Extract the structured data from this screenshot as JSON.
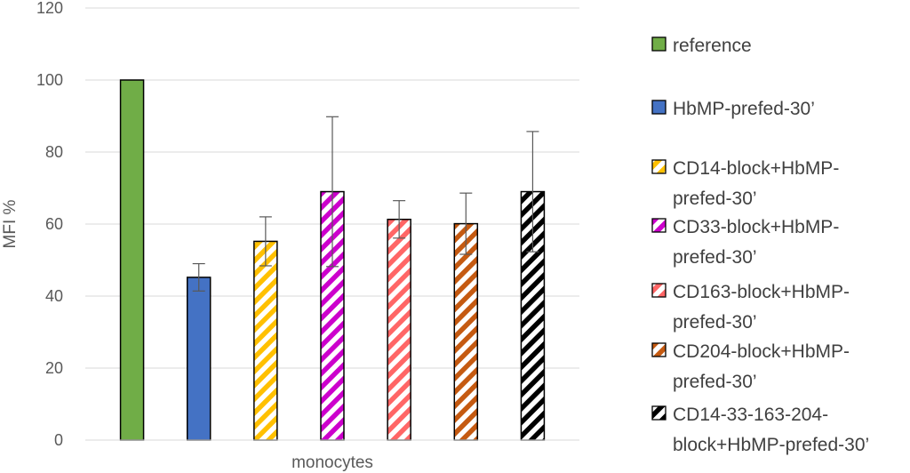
{
  "chart_data": {
    "type": "bar",
    "categories": [
      "monocytes"
    ],
    "xlabel": "monocytes",
    "ylabel": "MFI %",
    "ylim": [
      0,
      120
    ],
    "yticks": [
      0,
      20,
      40,
      60,
      80,
      100,
      120
    ],
    "grid": true,
    "legend_position": "right",
    "series": [
      {
        "name": "reference",
        "value": 100,
        "error": null,
        "color": "#70AD47",
        "pattern": "solid"
      },
      {
        "name": "HbMP-prefed-30’",
        "value": 45.2,
        "error": 3.8,
        "color": "#4472C4",
        "pattern": "solid"
      },
      {
        "name": "CD14-block+HbMP-prefed-30’",
        "value": 55.2,
        "error": 6.8,
        "color": "#FFC000",
        "pattern": "stripes"
      },
      {
        "name": "CD33-block+HbMP-prefed-30’",
        "value": 69.0,
        "error": 20.8,
        "color": "#CC00CC",
        "pattern": "stripes"
      },
      {
        "name": "CD163-block+HbMP-prefed-30’",
        "value": 61.3,
        "error": 5.2,
        "color": "#FF6666",
        "pattern": "stripes"
      },
      {
        "name": "CD204-block+HbMP-prefed-30’",
        "value": 60.1,
        "error": 8.5,
        "color": "#C55A11",
        "pattern": "stripes"
      },
      {
        "name": "CD14-33-163-204-block+HbMP-prefed-30’",
        "value": 69.0,
        "error": 16.7,
        "color": "#000000",
        "pattern": "stripes"
      }
    ],
    "legend_lines": [
      [
        "reference"
      ],
      [
        "HbMP-prefed-30’"
      ],
      [
        "CD14-block+HbMP-",
        "prefed-30’"
      ],
      [
        "CD33-block+HbMP-",
        "prefed-30’"
      ],
      [
        "CD163-block+HbMP-",
        "prefed-30’"
      ],
      [
        "CD204-block+HbMP-",
        "prefed-30’"
      ],
      [
        "CD14-33-163-204-",
        "block+HbMP-prefed-30’"
      ]
    ]
  }
}
